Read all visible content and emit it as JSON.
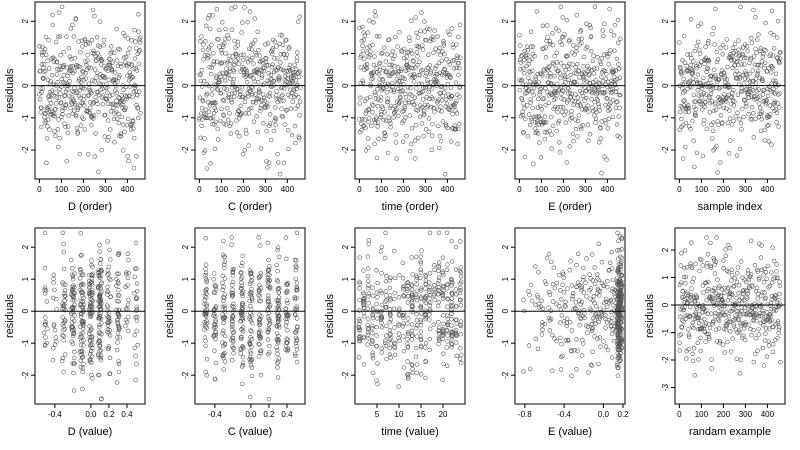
{
  "chart_data": [
    {
      "type": "scatter",
      "xlabel": "D (order)",
      "ylabel": "residuals",
      "xlim": [
        -20,
        480
      ],
      "ylim": [
        -2.9,
        2.6
      ],
      "xticks": [
        "0",
        "100",
        "200",
        "300",
        "400"
      ],
      "xtick_values": [
        0,
        100,
        200,
        300,
        400
      ],
      "yticks": [
        "-2",
        "-1",
        "0",
        "1",
        "2"
      ],
      "ytick_values": [
        -2,
        -1,
        0,
        1,
        2
      ],
      "reference_line_y": 0,
      "x_kind": "order",
      "n_points": 460,
      "seed": 11
    },
    {
      "type": "scatter",
      "xlabel": "C (order)",
      "ylabel": "residuals",
      "xlim": [
        -20,
        480
      ],
      "ylim": [
        -2.9,
        2.6
      ],
      "xticks": [
        "0",
        "100",
        "200",
        "300",
        "400"
      ],
      "xtick_values": [
        0,
        100,
        200,
        300,
        400
      ],
      "yticks": [
        "-2",
        "-1",
        "0",
        "1",
        "2"
      ],
      "ytick_values": [
        -2,
        -1,
        0,
        1,
        2
      ],
      "reference_line_y": 0,
      "x_kind": "order",
      "n_points": 460,
      "seed": 23
    },
    {
      "type": "scatter",
      "xlabel": "time (order)",
      "ylabel": "residuals",
      "xlim": [
        -20,
        480
      ],
      "ylim": [
        -2.9,
        2.6
      ],
      "xticks": [
        "0",
        "100",
        "200",
        "300",
        "400"
      ],
      "xtick_values": [
        0,
        100,
        200,
        300,
        400
      ],
      "yticks": [
        "-2",
        "-1",
        "0",
        "1",
        "2"
      ],
      "ytick_values": [
        -2,
        -1,
        0,
        1,
        2
      ],
      "reference_line_y": 0,
      "x_kind": "order",
      "n_points": 460,
      "seed": 37
    },
    {
      "type": "scatter",
      "xlabel": "E (order)",
      "ylabel": "residuals",
      "xlim": [
        -20,
        480
      ],
      "ylim": [
        -2.9,
        2.6
      ],
      "xticks": [
        "0",
        "100",
        "200",
        "300",
        "400"
      ],
      "xtick_values": [
        0,
        100,
        200,
        300,
        400
      ],
      "yticks": [
        "-2",
        "-1",
        "0",
        "1",
        "2"
      ],
      "ytick_values": [
        -2,
        -1,
        0,
        1,
        2
      ],
      "reference_line_y": 0,
      "x_kind": "order",
      "n_points": 460,
      "seed": 41
    },
    {
      "type": "scatter",
      "xlabel": "sample index",
      "ylabel": "residuals",
      "xlim": [
        -20,
        480
      ],
      "ylim": [
        -2.9,
        2.6
      ],
      "xticks": [
        "0",
        "100",
        "200",
        "300",
        "400"
      ],
      "xtick_values": [
        0,
        100,
        200,
        300,
        400
      ],
      "yticks": [
        "-2",
        "-1",
        "0",
        "1",
        "2"
      ],
      "ytick_values": [
        -2,
        -1,
        0,
        1,
        2
      ],
      "reference_line_y": 0,
      "x_kind": "order",
      "n_points": 460,
      "seed": 53
    },
    {
      "type": "scatter",
      "xlabel": "D (value)",
      "ylabel": "residuals",
      "xlim": [
        -0.62,
        0.6
      ],
      "ylim": [
        -2.9,
        2.6
      ],
      "xticks": [
        "-0.4",
        "0.0",
        "0.2",
        "0.4"
      ],
      "xtick_values": [
        -0.4,
        0.0,
        0.2,
        0.4
      ],
      "yticks": [
        "-2",
        "-1",
        "0",
        "1",
        "2"
      ],
      "ytick_values": [
        -2,
        -1,
        0,
        1,
        2
      ],
      "reference_line_y": 0,
      "x_kind": "d_value",
      "n_points": 460,
      "seed": 61
    },
    {
      "type": "scatter",
      "xlabel": "C (value)",
      "ylabel": "residuals",
      "xlim": [
        -0.62,
        0.6
      ],
      "ylim": [
        -2.9,
        2.6
      ],
      "xticks": [
        "-0.4",
        "0.0",
        "0.2",
        "0.4"
      ],
      "xtick_values": [
        -0.4,
        0.0,
        0.2,
        0.4
      ],
      "yticks": [
        "-2",
        "-1",
        "0",
        "1",
        "2"
      ],
      "ytick_values": [
        -2,
        -1,
        0,
        1,
        2
      ],
      "reference_line_y": 0,
      "x_kind": "c_value",
      "n_points": 460,
      "seed": 73
    },
    {
      "type": "scatter",
      "xlabel": "time (value)",
      "ylabel": "residuals",
      "xlim": [
        0,
        25
      ],
      "ylim": [
        -2.9,
        2.6
      ],
      "xticks": [
        "5",
        "10",
        "15",
        "20"
      ],
      "xtick_values": [
        5,
        10,
        15,
        20
      ],
      "yticks": [
        "-2",
        "-1",
        "0",
        "1",
        "2"
      ],
      "ytick_values": [
        -2,
        -1,
        0,
        1,
        2
      ],
      "reference_line_y": 0,
      "x_kind": "time_value",
      "n_points": 460,
      "seed": 89
    },
    {
      "type": "scatter",
      "xlabel": "E (value)",
      "ylabel": "residuals",
      "xlim": [
        -0.9,
        0.22
      ],
      "ylim": [
        -2.9,
        2.6
      ],
      "xticks": [
        "-0.8",
        "-0.4",
        "0.0",
        "0.2"
      ],
      "xtick_values": [
        -0.8,
        -0.4,
        0.0,
        0.2
      ],
      "yticks": [
        "-2",
        "-1",
        "0",
        "1",
        "2"
      ],
      "ytick_values": [
        -2,
        -1,
        0,
        1,
        2
      ],
      "reference_line_y": 0,
      "x_kind": "e_value",
      "n_points": 460,
      "seed": 97
    },
    {
      "type": "scatter",
      "xlabel": "randam example",
      "ylabel": "residuals",
      "xlim": [
        -20,
        480
      ],
      "ylim": [
        -3.6,
        2.8
      ],
      "xticks": [
        "0",
        "100",
        "200",
        "300",
        "400"
      ],
      "xtick_values": [
        0,
        100,
        200,
        300,
        400
      ],
      "yticks": [
        "-3",
        "-2",
        "-1",
        "0",
        "1",
        "2"
      ],
      "ytick_values": [
        -3,
        -2,
        -1,
        0,
        1,
        2
      ],
      "reference_line_y": 0,
      "x_kind": "order",
      "n_points": 460,
      "seed": 103
    }
  ]
}
